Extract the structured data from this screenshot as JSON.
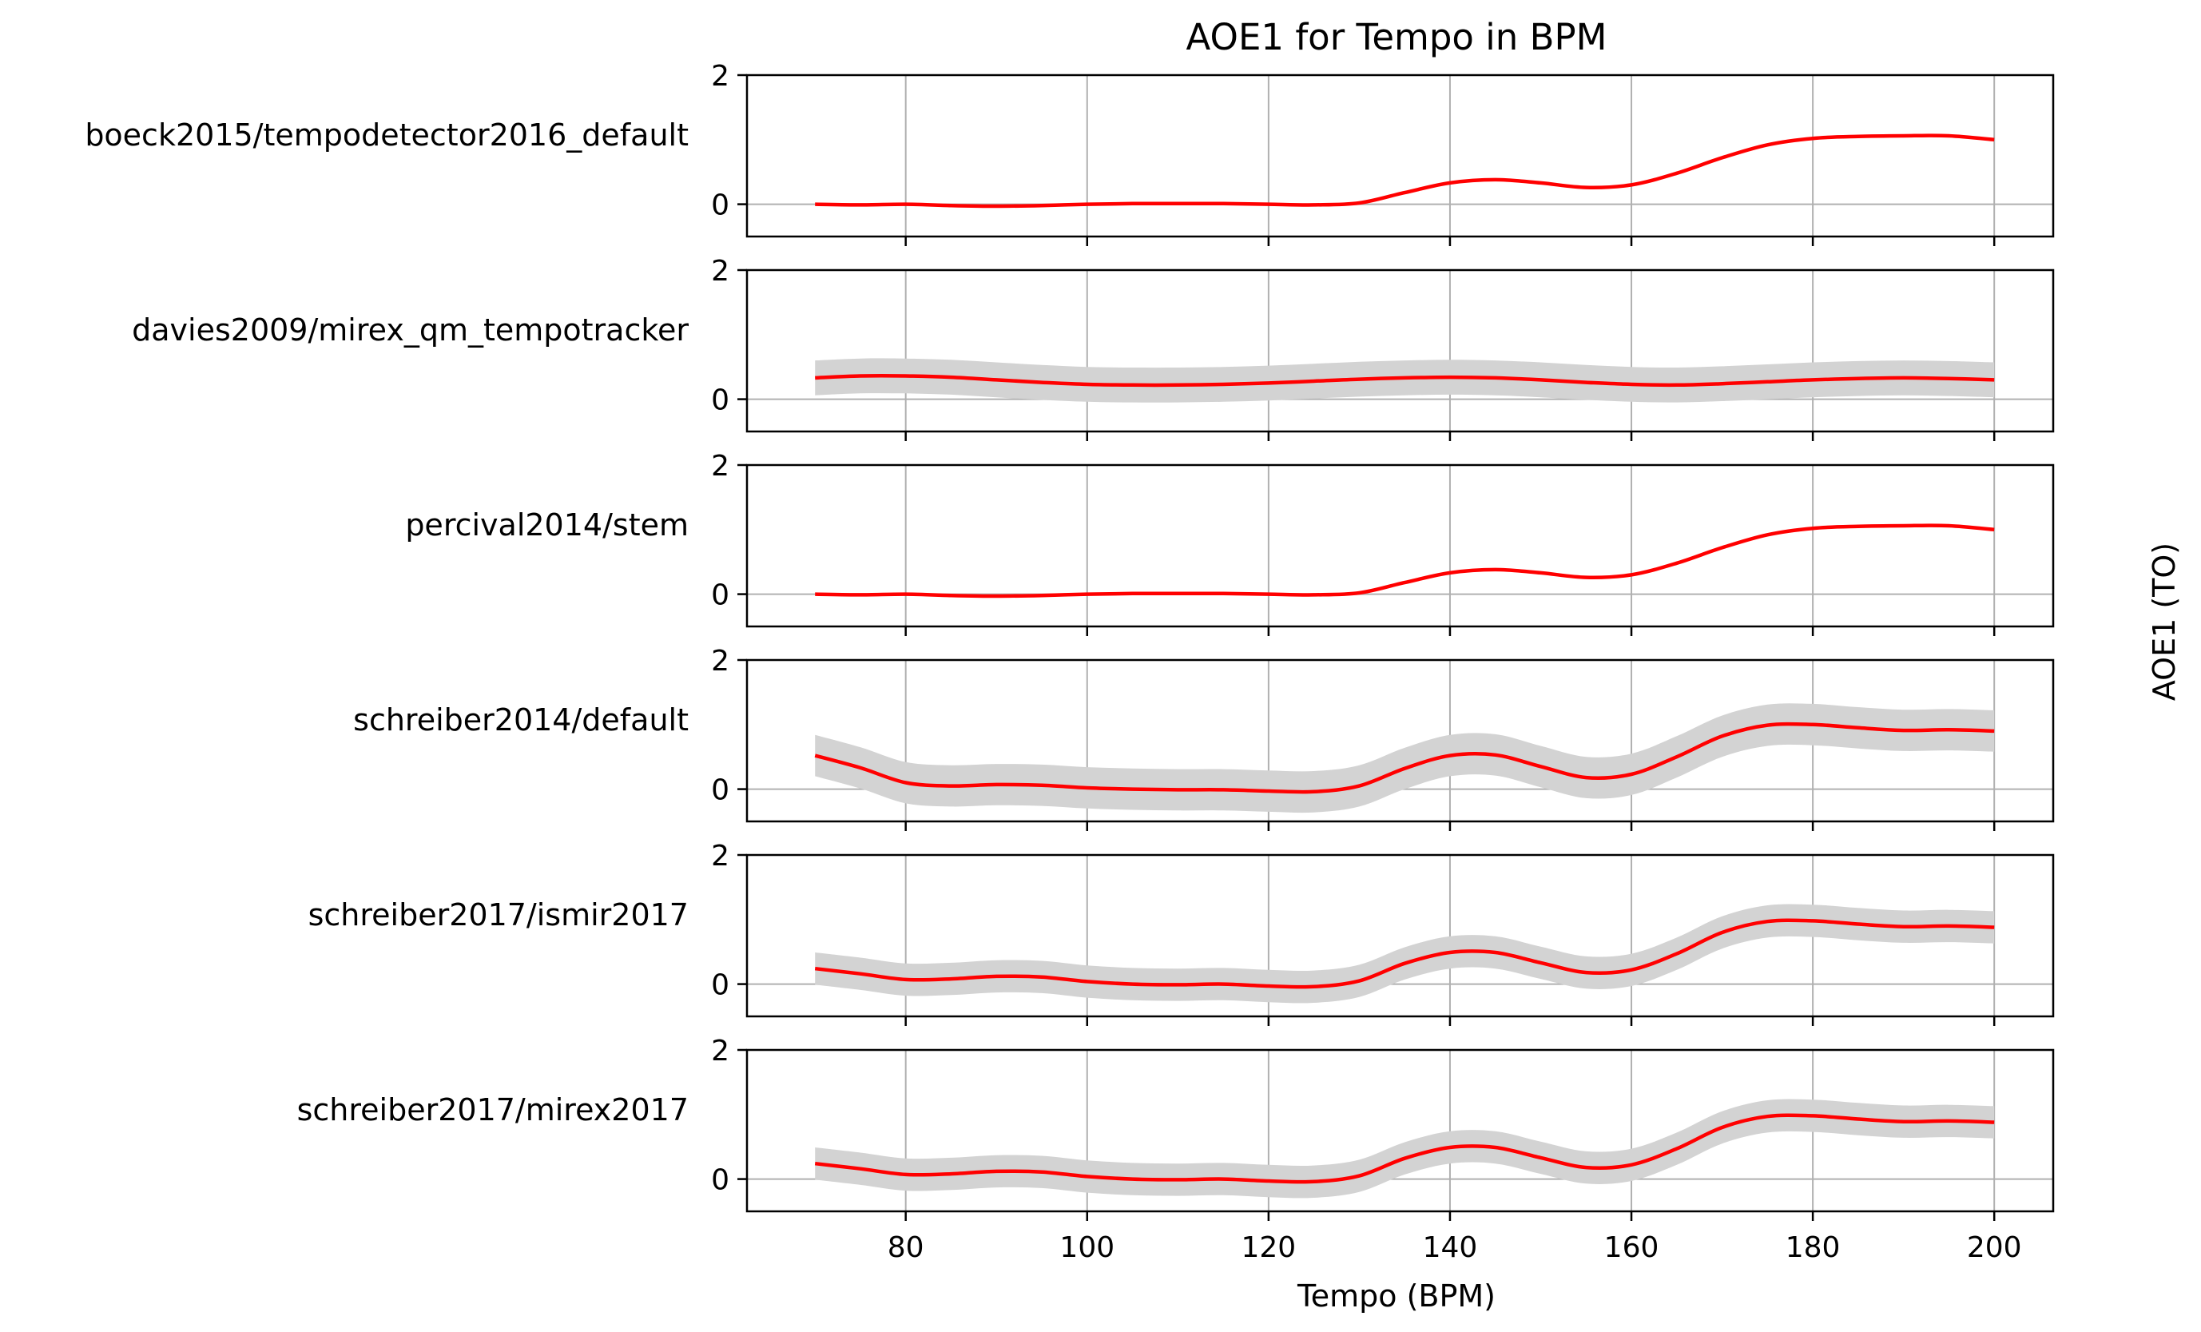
{
  "chart_data": {
    "type": "line",
    "title": "AOE1 for Tempo in BPM",
    "xlabel": "Tempo (BPM)",
    "ylabel": "AOE1 (TO)",
    "xlim": [
      62.5,
      206.5
    ],
    "ylim": [
      -0.5,
      2
    ],
    "xticks": [
      80,
      100,
      120,
      140,
      160,
      180,
      200
    ],
    "yticks": [
      0,
      2
    ],
    "grid": true,
    "line_color": "#ff0000",
    "band_color": "#d3d3d3",
    "x": [
      70,
      75,
      80,
      85,
      90,
      95,
      100,
      105,
      110,
      115,
      120,
      125,
      130,
      135,
      140,
      145,
      150,
      155,
      160,
      165,
      170,
      175,
      180,
      185,
      190,
      195,
      200
    ],
    "panels": [
      {
        "name": "boeck2015/tempodetector2016_default",
        "values": [
          0.0,
          -0.01,
          0.0,
          -0.02,
          -0.03,
          -0.02,
          0.0,
          0.01,
          0.01,
          0.01,
          0.0,
          -0.01,
          0.02,
          0.18,
          0.33,
          0.38,
          0.33,
          0.26,
          0.3,
          0.48,
          0.72,
          0.92,
          1.02,
          1.05,
          1.06,
          1.06,
          1.0
        ],
        "band": null
      },
      {
        "name": "davies2009/mirex_qm_tempotracker",
        "values": [
          0.33,
          0.36,
          0.36,
          0.34,
          0.3,
          0.26,
          0.23,
          0.22,
          0.22,
          0.23,
          0.25,
          0.28,
          0.31,
          0.33,
          0.34,
          0.33,
          0.3,
          0.26,
          0.23,
          0.22,
          0.24,
          0.27,
          0.3,
          0.32,
          0.33,
          0.32,
          0.3
        ],
        "band": 0.27
      },
      {
        "name": "percival2014/stem",
        "values": [
          0.0,
          -0.01,
          0.0,
          -0.02,
          -0.03,
          -0.02,
          0.0,
          0.01,
          0.01,
          0.01,
          0.0,
          -0.01,
          0.02,
          0.18,
          0.33,
          0.38,
          0.33,
          0.26,
          0.3,
          0.48,
          0.72,
          0.92,
          1.02,
          1.05,
          1.06,
          1.06,
          1.0
        ],
        "band": null
      },
      {
        "name": "schreiber2014/default",
        "values": [
          0.52,
          0.33,
          0.1,
          0.05,
          0.07,
          0.06,
          0.02,
          0.0,
          -0.01,
          -0.01,
          -0.03,
          -0.04,
          0.05,
          0.32,
          0.52,
          0.53,
          0.35,
          0.18,
          0.23,
          0.5,
          0.82,
          0.99,
          1.0,
          0.95,
          0.91,
          0.92,
          0.9
        ],
        "band": 0.32
      },
      {
        "name": "schreiber2017/ismir2017",
        "values": [
          0.24,
          0.16,
          0.07,
          0.08,
          0.12,
          0.11,
          0.04,
          0.0,
          -0.01,
          0.0,
          -0.03,
          -0.04,
          0.05,
          0.32,
          0.49,
          0.49,
          0.33,
          0.18,
          0.22,
          0.47,
          0.8,
          0.97,
          0.98,
          0.93,
          0.89,
          0.9,
          0.88
        ],
        "band": 0.25
      },
      {
        "name": "schreiber2017/mirex2017",
        "values": [
          0.24,
          0.16,
          0.07,
          0.08,
          0.12,
          0.11,
          0.04,
          0.0,
          -0.01,
          0.0,
          -0.03,
          -0.04,
          0.05,
          0.32,
          0.49,
          0.49,
          0.33,
          0.18,
          0.22,
          0.47,
          0.8,
          0.97,
          0.98,
          0.93,
          0.89,
          0.9,
          0.88
        ],
        "band": 0.25
      }
    ]
  }
}
